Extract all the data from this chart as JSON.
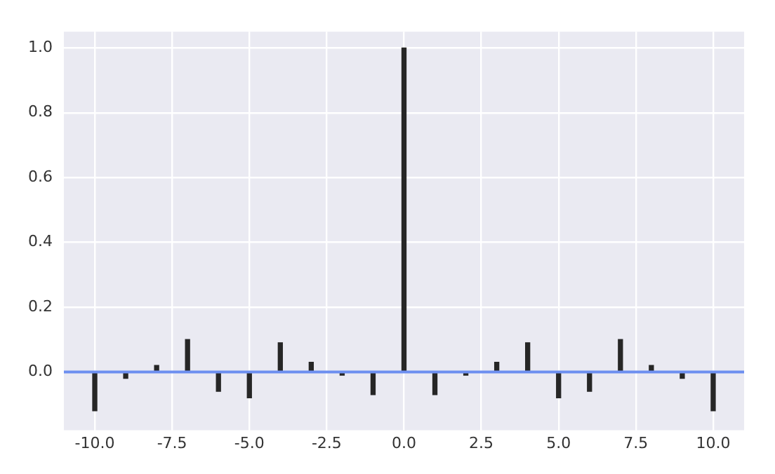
{
  "chart_data": {
    "type": "bar",
    "x": [
      -10,
      -9,
      -8,
      -7,
      -6,
      -5,
      -4,
      -3,
      -2,
      -1,
      0,
      1,
      2,
      3,
      4,
      5,
      6,
      7,
      8,
      9,
      10
    ],
    "values": [
      -0.12,
      -0.02,
      0.02,
      0.1,
      -0.06,
      -0.08,
      0.09,
      0.03,
      -0.01,
      -0.07,
      1.0,
      -0.07,
      -0.01,
      0.03,
      0.09,
      -0.08,
      -0.06,
      0.1,
      0.02,
      -0.02,
      -0.12
    ],
    "color": "#262626",
    "xlim": [
      -11,
      11
    ],
    "xticks": [
      {
        "value": -10,
        "label": "-10.0"
      },
      {
        "value": -7.5,
        "label": "-7.5"
      },
      {
        "value": -5,
        "label": "-5.0"
      },
      {
        "value": -2.5,
        "label": "-2.5"
      },
      {
        "value": 0,
        "label": "0.0"
      },
      {
        "value": 2.5,
        "label": "2.5"
      },
      {
        "value": 5,
        "label": "5.0"
      },
      {
        "value": 7.5,
        "label": "7.5"
      },
      {
        "value": 10,
        "label": "10.0"
      }
    ],
    "ylim": [
      -0.18,
      1.05
    ],
    "yticks": [
      {
        "value": 0,
        "label": "0.0"
      },
      {
        "value": 0.2,
        "label": "0.2"
      },
      {
        "value": 0.4,
        "label": "0.4"
      },
      {
        "value": 0.6,
        "label": "0.6"
      },
      {
        "value": 0.8,
        "label": "0.8"
      },
      {
        "value": 1,
        "label": "1.0"
      }
    ],
    "ref_lines": [
      {
        "axis": "y",
        "value": 0,
        "color": "#6d8ff0"
      }
    ],
    "grid": true
  }
}
